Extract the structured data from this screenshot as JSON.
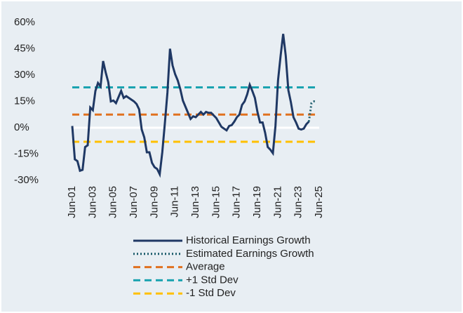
{
  "chart_data": {
    "type": "line",
    "series": [
      {
        "name": "Historical Earnings Growth",
        "color": "#1f3864",
        "style": "solid",
        "x": [
          "Jun-01",
          "Sep-01",
          "Dec-01",
          "Mar-02",
          "Jun-02",
          "Sep-02",
          "Dec-02",
          "Mar-03",
          "Jun-03",
          "Sep-03",
          "Dec-03",
          "Mar-04",
          "Jun-04",
          "Sep-04",
          "Dec-04",
          "Mar-05",
          "Jun-05",
          "Sep-05",
          "Dec-05",
          "Mar-06",
          "Jun-06",
          "Sep-06",
          "Dec-06",
          "Mar-07",
          "Jun-07",
          "Sep-07",
          "Dec-07",
          "Mar-08",
          "Jun-08",
          "Sep-08",
          "Dec-08",
          "Mar-09",
          "Jun-09",
          "Sep-09",
          "Dec-09",
          "Mar-10",
          "Jun-10",
          "Sep-10",
          "Dec-10",
          "Mar-11",
          "Jun-11",
          "Sep-11",
          "Dec-11",
          "Mar-12",
          "Jun-12",
          "Sep-12",
          "Dec-12",
          "Mar-13",
          "Jun-13",
          "Sep-13",
          "Dec-13",
          "Mar-14",
          "Jun-14",
          "Sep-14",
          "Dec-14",
          "Mar-15",
          "Jun-15",
          "Sep-15",
          "Dec-15",
          "Mar-16",
          "Jun-16",
          "Sep-16",
          "Dec-16",
          "Mar-17",
          "Jun-17",
          "Sep-17",
          "Dec-17",
          "Mar-18",
          "Jun-18",
          "Sep-18",
          "Dec-18",
          "Mar-19",
          "Jun-19",
          "Sep-19",
          "Dec-19",
          "Mar-20",
          "Jun-20",
          "Sep-20",
          "Dec-20",
          "Mar-21",
          "Jun-21",
          "Sep-21",
          "Dec-21",
          "Mar-22",
          "Jun-22",
          "Sep-22",
          "Dec-22",
          "Mar-23",
          "Jun-23",
          "Sep-23",
          "Dec-23",
          "Mar-24",
          "Jun-24"
        ],
        "values": [
          1,
          -18,
          -19,
          -24.5,
          -24,
          -11,
          -10,
          11.5,
          10,
          21,
          25.5,
          23.5,
          38,
          31.5,
          26,
          15,
          15.5,
          14,
          17.5,
          21,
          17,
          18,
          17,
          16,
          15,
          13.5,
          10.5,
          -1,
          -5.5,
          -14,
          -14,
          -20,
          -22.5,
          -23.5,
          -26.5,
          -14,
          2.5,
          20,
          45,
          35.5,
          30.5,
          27,
          22,
          15.5,
          12,
          8.5,
          5,
          6.5,
          6,
          7.5,
          9,
          7.5,
          9,
          8.5,
          8.5,
          7,
          5.5,
          3,
          0.5,
          -0.5,
          -1.5,
          1,
          1.5,
          3.5,
          6,
          7.5,
          13,
          15,
          19,
          24.5,
          21,
          17,
          9,
          3,
          3,
          -3,
          -11,
          -12.5,
          -14.5,
          1,
          27,
          41,
          53.5,
          41,
          21.5,
          14.5,
          6,
          3,
          -0.5,
          -1,
          -0.5,
          2,
          3.5
        ]
      },
      {
        "name": "Estimated Earnings Growth",
        "color": "#1a5b6b",
        "style": "dotted",
        "x": [
          "Jun-24",
          "Sep-24",
          "Dec-24",
          "Mar-25"
        ],
        "values": [
          3.5,
          14,
          15,
          14.5
        ]
      }
    ],
    "hlines": [
      {
        "name": "Average",
        "color": "#e0711f",
        "value": 7.5
      },
      {
        "name": "+1 Std Dev",
        "color": "#1aa3b0",
        "value": 23
      },
      {
        "name": "-1 Std Dev",
        "color": "#ffc000",
        "value": -8
      }
    ],
    "xlim": [
      "Jun-01",
      "Jun-25"
    ],
    "xticks": [
      "Jun-01",
      "Jun-03",
      "Jun-05",
      "Jun-07",
      "Jun-09",
      "Jun-11",
      "Jun-13",
      "Jun-15",
      "Jun-17",
      "Jun-19",
      "Jun-21",
      "Jun-23",
      "Jun-25"
    ],
    "ylim": [
      -30,
      60
    ],
    "yticks": [
      {
        "value": -30,
        "label": "-30%"
      },
      {
        "value": -15,
        "label": "-15%"
      },
      {
        "value": 0,
        "label": "0%"
      },
      {
        "value": 15,
        "label": "15%"
      },
      {
        "value": 30,
        "label": "30%"
      },
      {
        "value": 45,
        "label": "45%"
      },
      {
        "value": 60,
        "label": "60%"
      }
    ]
  }
}
